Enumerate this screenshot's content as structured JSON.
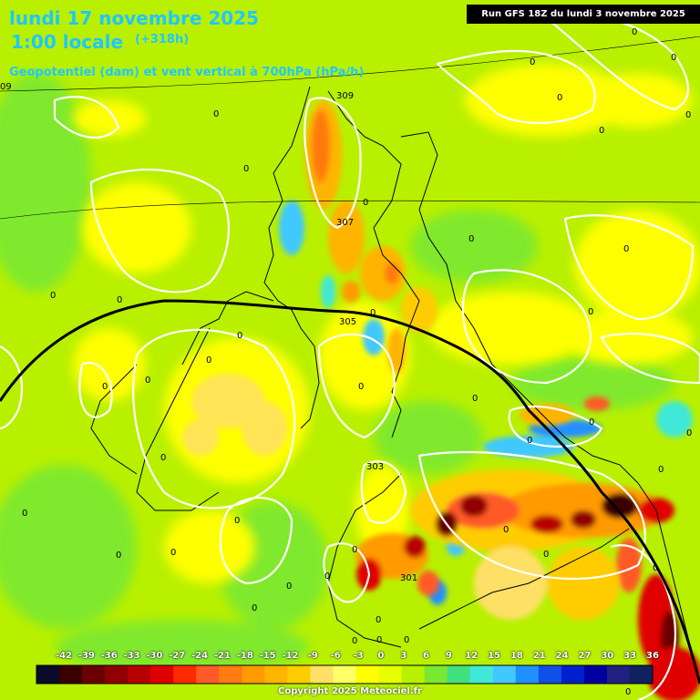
{
  "header": {
    "date": "lundi 17 novembre 2025",
    "local_time": "1:00 locale",
    "lead": "(+318h)",
    "parameter": "Geopotentiel (dam) et vent vertical à 700hPa (hPa/h)",
    "run": "Run GFS 18Z du lundi 3 novembre 2025"
  },
  "colors": {
    "background_neutral": "#b8f000",
    "title_text": "#1ec8ff",
    "isoline_zero": "#ffffff",
    "isohypse": "#000000"
  },
  "geopotential_labels": [
    "309",
    "307",
    "305",
    "303",
    "301"
  ],
  "isoline_edge_label": "09",
  "zero_label": "0",
  "color_scale": {
    "unit": "hPa/h",
    "ticks": [
      "-42",
      "-39",
      "-36",
      "-33",
      "-30",
      "-27",
      "-24",
      "-21",
      "-18",
      "-15",
      "-12",
      "-9",
      "-6",
      "-3",
      "0",
      "3",
      "6",
      "9",
      "12",
      "15",
      "18",
      "21",
      "24",
      "27",
      "30",
      "33",
      "36"
    ],
    "colors": [
      "#0a0a2a",
      "#3a0000",
      "#6a0000",
      "#900000",
      "#b80000",
      "#e00000",
      "#ff2a00",
      "#ff5a28",
      "#ff7a10",
      "#ff9a00",
      "#ffb400",
      "#ffcc00",
      "#ffe066",
      "#ffff66",
      "#ffff00",
      "#e8ff00",
      "#b8f000",
      "#7ae830",
      "#40e080",
      "#40e8d8",
      "#40c8ff",
      "#2090ff",
      "#1050e8",
      "#0020d0",
      "#0000a0",
      "#202080",
      "#102060"
    ]
  },
  "copyright": "Copyright 2025 Meteociel.fr"
}
